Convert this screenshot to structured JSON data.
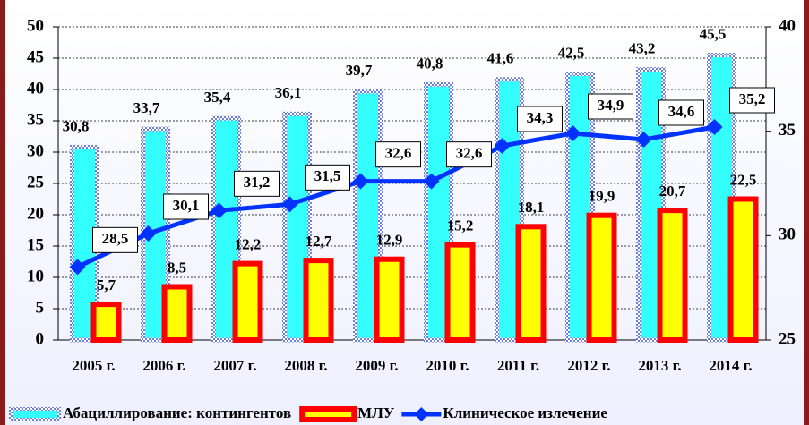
{
  "chart_data": {
    "type": "bar_line",
    "categories": [
      "2005 г.",
      "2006 г.",
      "2007 г.",
      "2008 г.",
      "2009 г.",
      "2010 г.",
      "2011 г.",
      "2012 г.",
      "2013 г.",
      "2014 г."
    ],
    "series": [
      {
        "name": "Абациллирование: контингентов",
        "type": "bar",
        "color": "#33ffff",
        "border_color": "#6a7fe0",
        "values": [
          30.8,
          33.7,
          35.4,
          36.1,
          39.7,
          40.8,
          41.6,
          42.5,
          43.2,
          45.5
        ],
        "value_labels": [
          "30,8",
          "33,7",
          "35,4",
          "36,1",
          "39,7",
          "40,8",
          "41,6",
          "42,5",
          "43,2",
          "45,5"
        ]
      },
      {
        "name": "МЛУ",
        "type": "bar",
        "color": "#ff0000",
        "fill_color": "#ffff00",
        "values": [
          5.7,
          8.5,
          12.2,
          12.7,
          12.9,
          15.2,
          18.1,
          19.9,
          20.7,
          22.5
        ],
        "value_labels": [
          "5,7",
          "8,5",
          "12,2",
          "12,7",
          "12,9",
          "15,2",
          "18,1",
          "19,9",
          "20,7",
          "22,5"
        ]
      },
      {
        "name": "Клиническое излечение",
        "type": "line",
        "axis": "y2",
        "color": "#0033ff",
        "values": [
          28.5,
          30.1,
          31.2,
          31.5,
          32.6,
          32.6,
          34.3,
          34.9,
          34.6,
          35.2
        ],
        "value_labels": [
          "28,5",
          "30,1",
          "31,2",
          "31,5",
          "32,6",
          "32,6",
          "34,3",
          "34,9",
          "34,6",
          "35,2"
        ]
      }
    ],
    "ylim": [
      0,
      50
    ],
    "yticks": [
      0,
      5,
      10,
      15,
      20,
      25,
      30,
      35,
      40,
      45,
      50
    ],
    "y2lim": [
      25,
      40
    ],
    "y2ticks": [
      25,
      30,
      35,
      40
    ],
    "grid": true,
    "legend": "bottom"
  }
}
